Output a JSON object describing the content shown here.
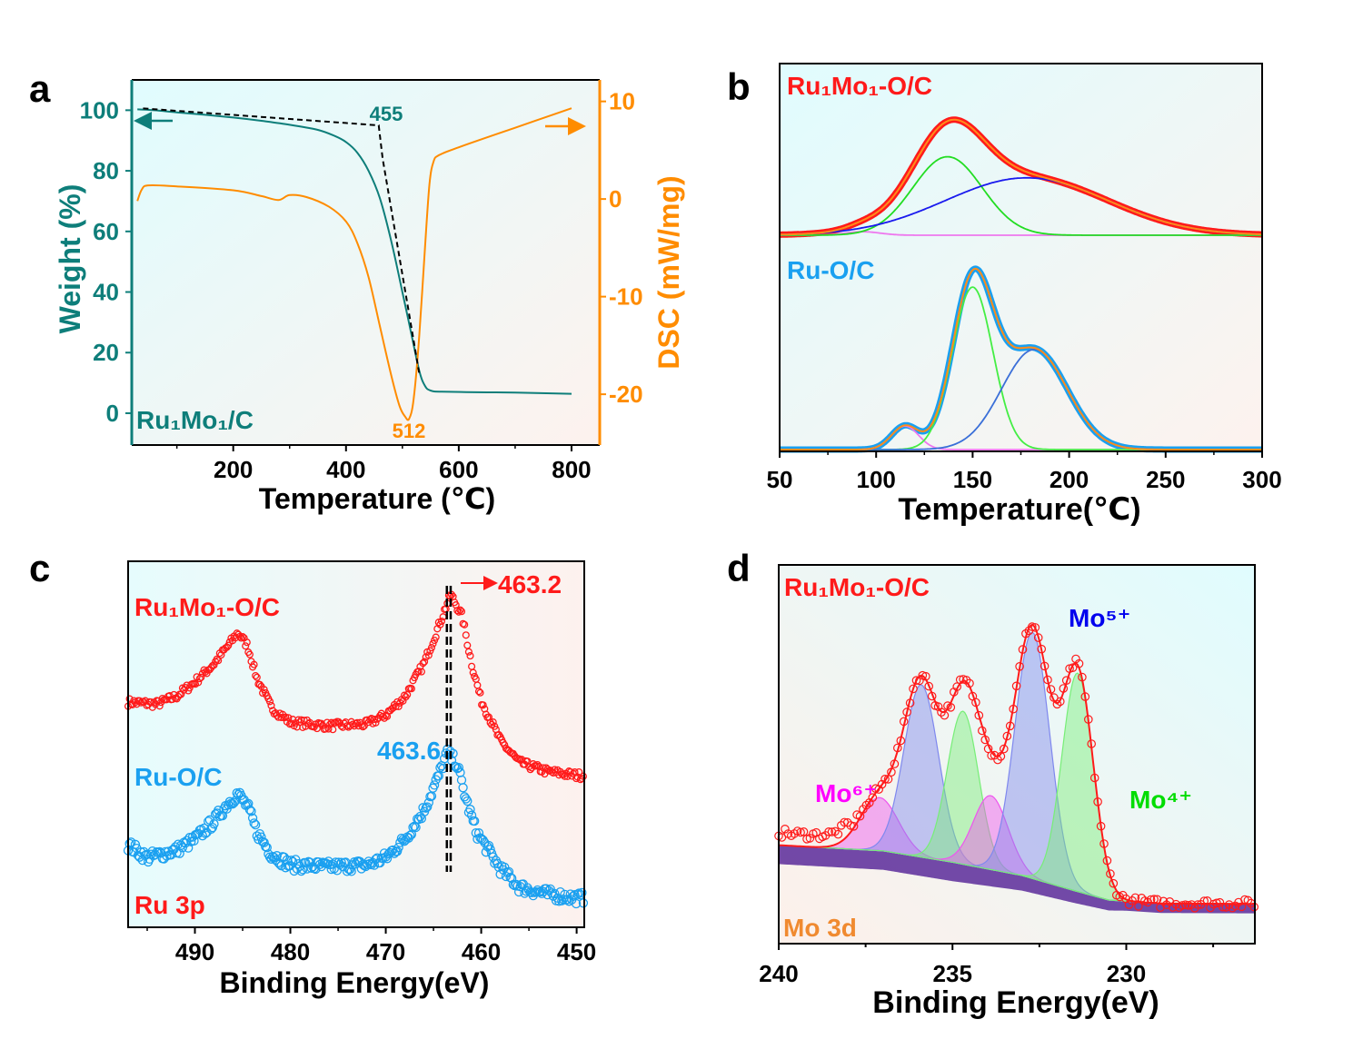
{
  "chart_data": [
    {
      "type": "line",
      "panel_label": "a",
      "xlabel": "Temperature (℃)",
      "ylabel": "Weight (%)",
      "y2label": "DSC (mW/mg)",
      "xlim": [
        20,
        850
      ],
      "ylim": [
        -10.5,
        110
      ],
      "y2lim": [
        -25.2,
        12.2
      ],
      "xticks": [
        200,
        400,
        600,
        800
      ],
      "yticks": [
        0,
        20,
        40,
        60,
        80,
        100
      ],
      "y2ticks": [
        -20,
        -10,
        0,
        10
      ],
      "sample_label": "Ru₁Mo₁/C",
      "annotations": {
        "onset": "455",
        "dsc_min": "512"
      },
      "colors": {
        "weight": "#0e7e7a",
        "dsc": "#ff8c00",
        "tangent": "#000000"
      },
      "series": [
        {
          "axis": "left",
          "points": [
            [
              30,
              100.3
            ],
            [
              60,
              100
            ],
            [
              100,
              99.3
            ],
            [
              150,
              98.5
            ],
            [
              200,
              97.6
            ],
            [
              250,
              96.5
            ],
            [
              300,
              95.2
            ],
            [
              350,
              93.5
            ],
            [
              380,
              91.5
            ],
            [
              400,
              89.5
            ],
            [
              420,
              86
            ],
            [
              440,
              80
            ],
            [
              460,
              71
            ],
            [
              480,
              57
            ],
            [
              500,
              40
            ],
            [
              515,
              27
            ],
            [
              530,
              14
            ],
            [
              540,
              9
            ],
            [
              550,
              7.5
            ],
            [
              570,
              7.1
            ],
            [
              650,
              6.9
            ],
            [
              700,
              6.8
            ],
            [
              800,
              6.4
            ]
          ]
        },
        {
          "axis": "right",
          "points": [
            [
              30,
              -0.2
            ],
            [
              38,
              1
            ],
            [
              50,
              1.4
            ],
            [
              100,
              1.3
            ],
            [
              200,
              0.9
            ],
            [
              250,
              0.3
            ],
            [
              280,
              -0.1
            ],
            [
              300,
              0.4
            ],
            [
              330,
              0.2
            ],
            [
              370,
              -0.8
            ],
            [
              400,
              -2.3
            ],
            [
              420,
              -4.5
            ],
            [
              440,
              -8
            ],
            [
              460,
              -13
            ],
            [
              480,
              -18
            ],
            [
              495,
              -21.2
            ],
            [
              505,
              -22.3
            ],
            [
              512,
              -22.5
            ],
            [
              520,
              -20.5
            ],
            [
              530,
              -14
            ],
            [
              540,
              -5
            ],
            [
              548,
              1.5
            ],
            [
              555,
              3.8
            ],
            [
              565,
              4.5
            ],
            [
              600,
              5.3
            ],
            [
              700,
              7.3
            ],
            [
              800,
              9.3
            ]
          ]
        },
        {
          "axis": "left",
          "style": "dashed",
          "points": [
            [
              40,
              100.6
            ],
            [
              458,
              95
            ],
            [
              465,
              84
            ],
            [
              530,
              13
            ]
          ]
        }
      ]
    },
    {
      "type": "line",
      "panel_label": "b",
      "xlabel": "Temperature(℃)",
      "xlim": [
        50,
        300
      ],
      "xticks": [
        50,
        100,
        150,
        200,
        250,
        300
      ],
      "samples": [
        {
          "label": "Ru₁Mo₁-O/C",
          "color": "#ff1a1a",
          "fit_color": "#ff8c1a",
          "components": [
            {
              "center": 93,
              "amplitude": 0.03,
              "width": 9,
              "color": "#ee77ee"
            },
            {
              "center": 137,
              "amplitude": 0.67,
              "width": 18,
              "color": "#22dd22"
            },
            {
              "center": 178,
              "amplitude": 0.49,
              "width": 42,
              "color": "#1a1aee"
            }
          ]
        },
        {
          "label": "Ru-O/C",
          "color": "#1aa0f0",
          "fit_color": "#ff8c1a",
          "components": [
            {
              "center": 115,
              "amplitude": 0.125,
              "width": 7,
              "color": "#ee77ee"
            },
            {
              "center": 150,
              "amplitude": 0.86,
              "width": 10.5,
              "color": "#44ee44"
            },
            {
              "center": 182,
              "amplitude": 0.53,
              "width": 17,
              "color": "#3a6fd8"
            }
          ]
        }
      ]
    },
    {
      "type": "scatter",
      "panel_label": "c",
      "xlabel": "Binding Energy(eV)",
      "xlim": [
        497,
        449.2
      ],
      "ylim": [
        0,
        100
      ],
      "xticks": [
        490,
        480,
        470,
        460,
        450
      ],
      "region_label": "Ru 3p",
      "annotations": {
        "peak_ru1mo1": "463.2",
        "peak_ru": "463.6"
      },
      "reference_lines": [
        463.6,
        463.2
      ],
      "series": [
        {
          "name": "Ru₁Mo₁-O/C",
          "color": "#ff1a1a",
          "points": [
            [
              497,
              61.5
            ],
            [
              494,
              61
            ],
            [
              492,
              63
            ],
            [
              490,
              67
            ],
            [
              488,
              72
            ],
            [
              486.5,
              77
            ],
            [
              485.5,
              80.5
            ],
            [
              484.5,
              77
            ],
            [
              483.5,
              68
            ],
            [
              482,
              60
            ],
            [
              480,
              56
            ],
            [
              476,
              55
            ],
            [
              472,
              55.5
            ],
            [
              470,
              58
            ],
            [
              468,
              63
            ],
            [
              466,
              72
            ],
            [
              464.5,
              82
            ],
            [
              463.2,
              91
            ],
            [
              462,
              85
            ],
            [
              461,
              72
            ],
            [
              460,
              62
            ],
            [
              458,
              51
            ],
            [
              456,
              45
            ],
            [
              453,
              42.5
            ],
            [
              450,
              41.5
            ],
            [
              449.2,
              41.5
            ]
          ]
        },
        {
          "name": "Ru-O/C",
          "color": "#1aa0f0",
          "points": [
            [
              497,
              22.5
            ],
            [
              495,
              19
            ],
            [
              492,
              21
            ],
            [
              490,
              24
            ],
            [
              488,
              29
            ],
            [
              486.5,
              34
            ],
            [
              485.5,
              36.5
            ],
            [
              484.5,
              33
            ],
            [
              483.5,
              26
            ],
            [
              482,
              20
            ],
            [
              480,
              17
            ],
            [
              476,
              16.5
            ],
            [
              472,
              17
            ],
            [
              470,
              19
            ],
            [
              468,
              24
            ],
            [
              466,
              32
            ],
            [
              464.5,
              41
            ],
            [
              463.6,
              47.5
            ],
            [
              462.6,
              45
            ],
            [
              461.5,
              34
            ],
            [
              460.5,
              26
            ],
            [
              458,
              16
            ],
            [
              456,
              11
            ],
            [
              453,
              9
            ],
            [
              450,
              8
            ],
            [
              449.2,
              8
            ]
          ]
        }
      ]
    },
    {
      "type": "scatter",
      "panel_label": "d",
      "xlabel": "Binding Energy(eV)",
      "xlim": [
        240,
        226.3
      ],
      "ylim": [
        0,
        100
      ],
      "xticks": [
        240,
        235,
        230
      ],
      "sample_label": "Ru₁Mo₁-O/C",
      "region_label": "Mo 3d",
      "data_color": "#ff1a1a",
      "background_color": "#5a2a9a",
      "background": [
        [
          240,
          26
        ],
        [
          237,
          24.5
        ],
        [
          235,
          21.5
        ],
        [
          233,
          18
        ],
        [
          231.5,
          14
        ],
        [
          230.5,
          11.5
        ],
        [
          229,
          10.6
        ],
        [
          226.3,
          10.5
        ]
      ],
      "components": [
        {
          "label": "Mo⁶⁺",
          "color": "#ee55ee",
          "label_color": "#ff00ff",
          "center": 237.1,
          "amplitude": 14,
          "width": 0.55
        },
        {
          "label": "Mo⁵⁺",
          "color": "#7f88ee",
          "label_color": "#0000ee",
          "center": 235.9,
          "amplitude": 45.5,
          "width": 0.5
        },
        {
          "color": "#77ee77",
          "center": 234.7,
          "amplitude": 40.4,
          "width": 0.45
        },
        {
          "color": "#ee55ee",
          "center": 233.9,
          "amplitude": 19.5,
          "width": 0.5
        },
        {
          "color": "#7f88ee",
          "center": 232.7,
          "amplitude": 65,
          "width": 0.5
        },
        {
          "label": "Mo⁴⁺",
          "color": "#77ee77",
          "label_color": "#00dd00",
          "center": 231.4,
          "amplitude": 57.7,
          "width": 0.45
        }
      ]
    }
  ]
}
